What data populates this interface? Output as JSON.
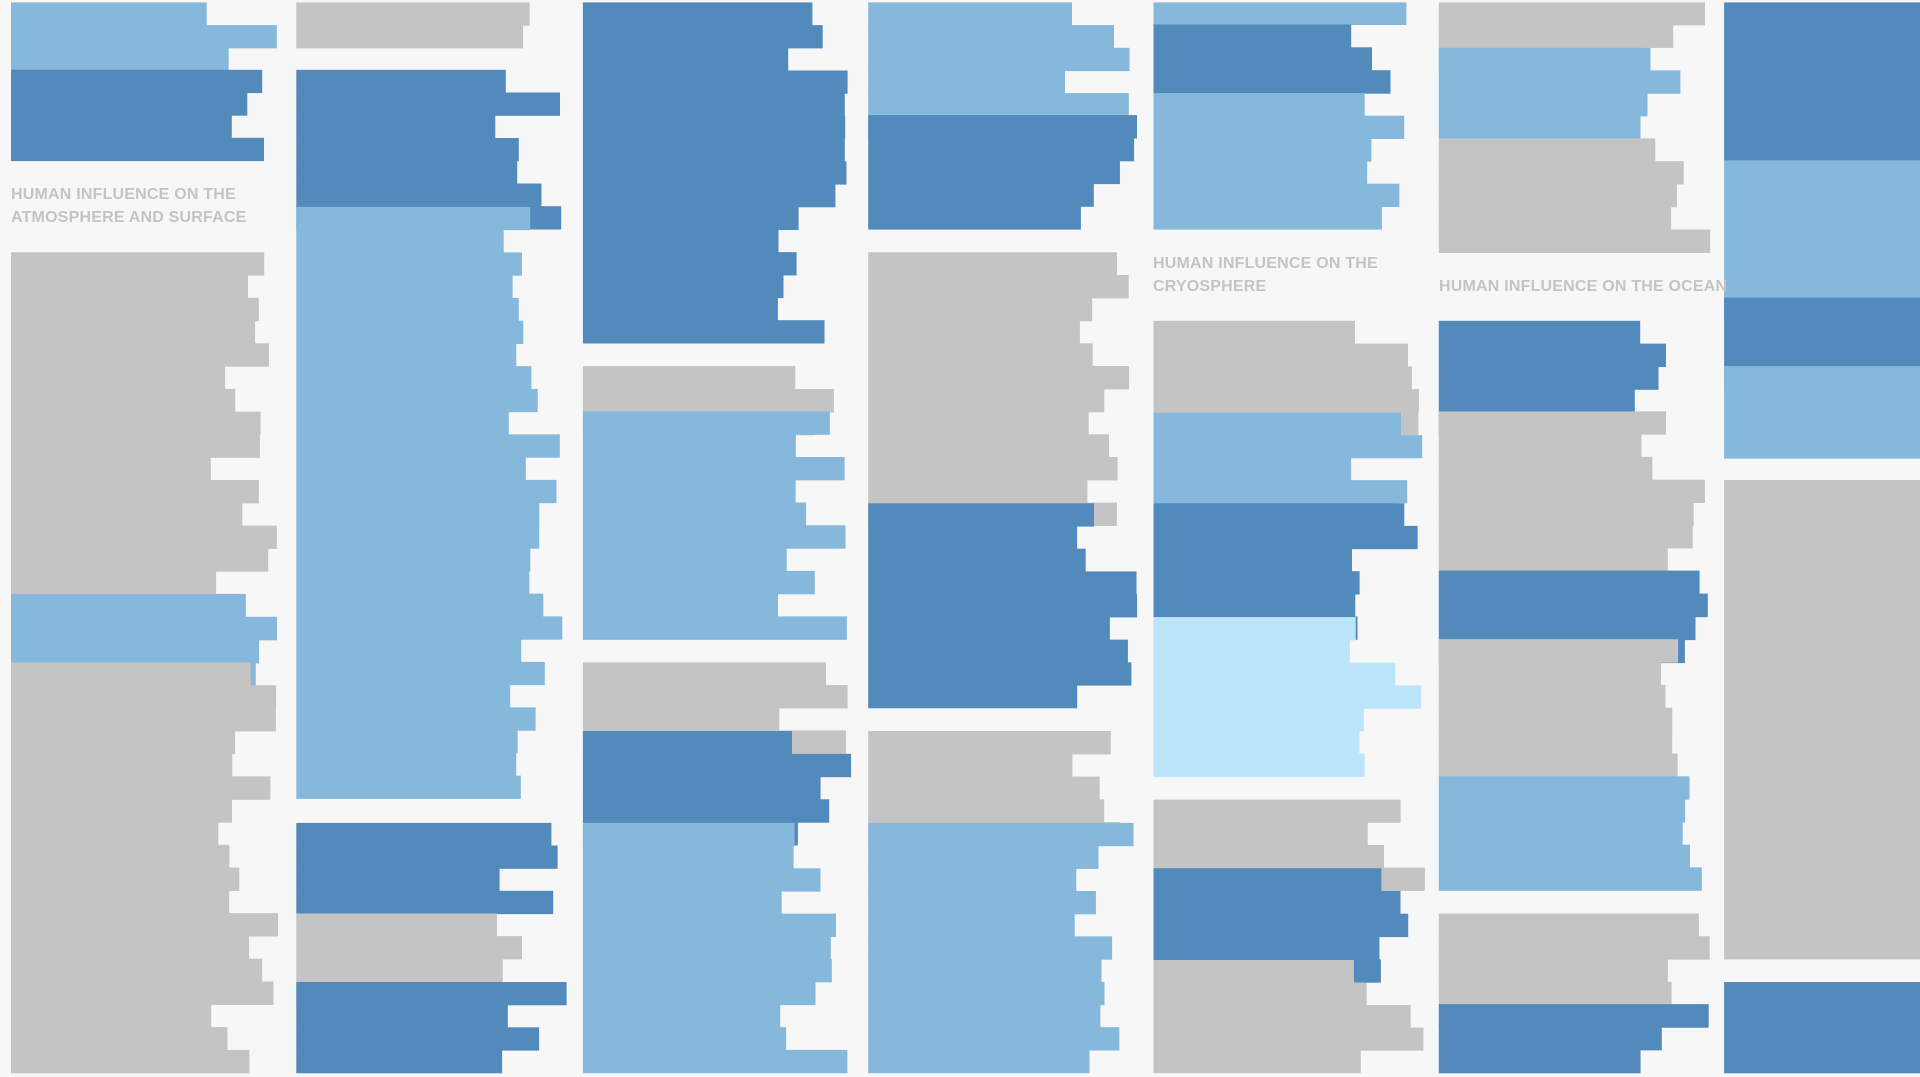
{
  "headings": {
    "atmosphere": "HUMAN INFLUENCE ON THE ATMOSPHERE AND SURFACE",
    "cryosphere": "HUMAN INFLUENCE ON THE CRYOSPHERE",
    "ocean": "HUMAN INFLUENCE ON THE OCEAN"
  }
}
